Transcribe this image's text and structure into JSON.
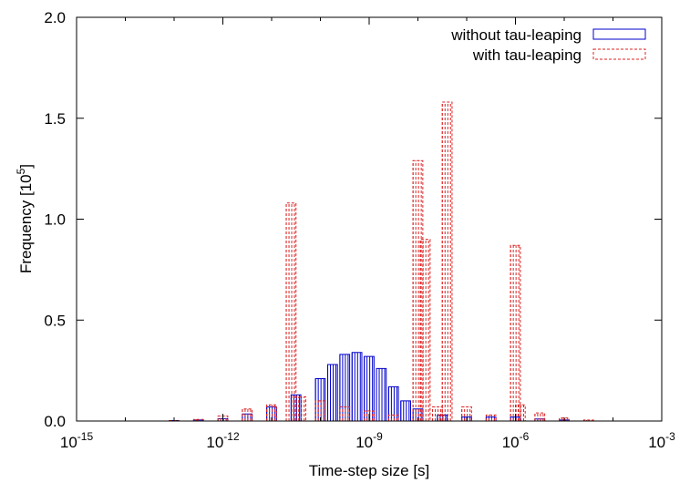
{
  "chart_data": {
    "type": "histogram",
    "xlabel": "Time-step size [s]",
    "ylabel": "Frequency [10^5]",
    "xscale": "log",
    "xlim_exponent": [
      -15,
      -3
    ],
    "ylim": [
      0,
      2.0
    ],
    "xticks": [
      {
        "base": "10",
        "exp": "-15",
        "value": 1e-15
      },
      {
        "base": "10",
        "exp": "-12",
        "value": 1e-12
      },
      {
        "base": "10",
        "exp": "-9",
        "value": 1e-09
      },
      {
        "base": "10",
        "exp": "-6",
        "value": 1e-06
      },
      {
        "base": "10",
        "exp": "-3",
        "value": 0.001
      }
    ],
    "yticks": [
      "0.0",
      "0.5",
      "1.0",
      "1.5",
      "2.0"
    ],
    "grid": false,
    "legend_position": "top-right",
    "series": [
      {
        "name": "without tau-leaping",
        "color": "#0000cc",
        "style": "solid",
        "bins_log10_center": [
          -13.5,
          -13.0,
          -12.5,
          -12.0,
          -11.5,
          -11.0,
          -10.5,
          -10.0,
          -9.75,
          -9.5,
          -9.25,
          -9.0,
          -8.75,
          -8.5,
          -8.25,
          -8.0,
          -7.5,
          -7.0,
          -6.5,
          -6.0,
          -5.5,
          -5.0
        ],
        "values": [
          0.0,
          0.002,
          0.005,
          0.012,
          0.035,
          0.07,
          0.13,
          0.21,
          0.28,
          0.33,
          0.34,
          0.32,
          0.26,
          0.17,
          0.1,
          0.06,
          0.03,
          0.02,
          0.02,
          0.02,
          0.01,
          0.005
        ]
      },
      {
        "name": "with tau-leaping",
        "color": "#dd2222",
        "style": "dashed",
        "bins_log10_center": [
          -13.0,
          -12.5,
          -12.0,
          -11.5,
          -11.0,
          -10.6,
          -10.4,
          -10.0,
          -9.5,
          -9.0,
          -8.5,
          -8.0,
          -7.85,
          -7.6,
          -7.4,
          -7.0,
          -6.5,
          -6.0,
          -5.9,
          -5.5,
          -5.0,
          -4.5
        ],
        "values": [
          0.002,
          0.008,
          0.025,
          0.06,
          0.08,
          1.08,
          0.12,
          0.1,
          0.07,
          0.05,
          0.03,
          1.29,
          0.9,
          0.07,
          1.58,
          0.07,
          0.03,
          0.87,
          0.08,
          0.04,
          0.015,
          0.005
        ]
      }
    ]
  }
}
